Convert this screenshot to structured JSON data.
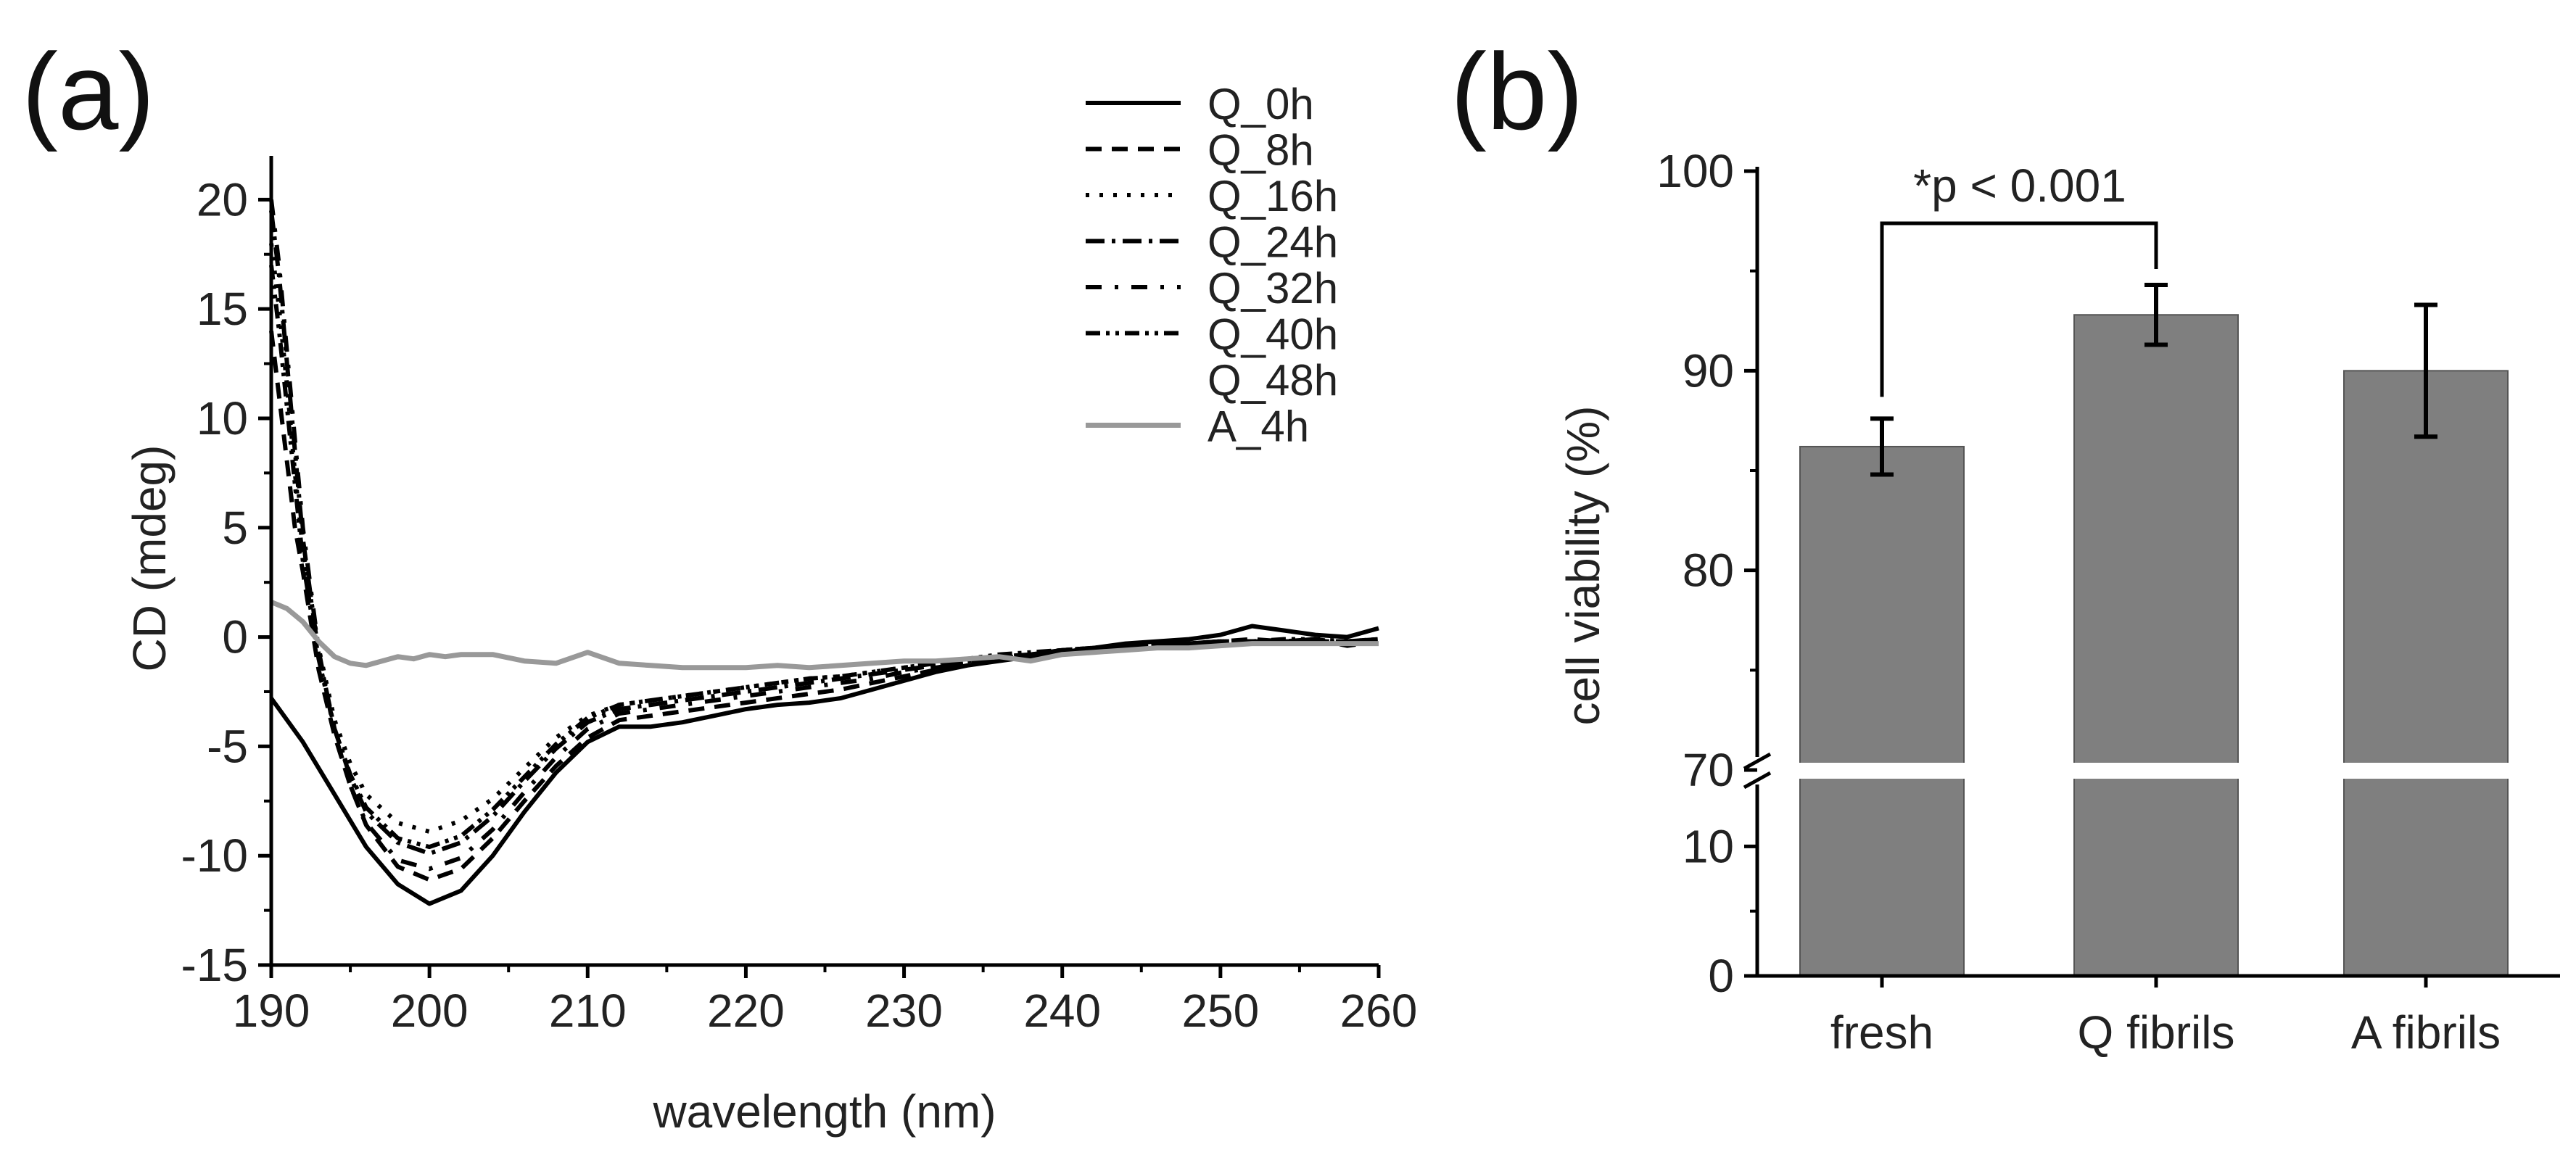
{
  "chart_data": [
    {
      "panel_label": "(a)",
      "type": "line",
      "xlabel": "wavelength (nm)",
      "ylabel": "CD (mdeg)",
      "xlim": [
        190,
        260
      ],
      "ylim": [
        -15,
        22
      ],
      "xticks": [
        190,
        200,
        210,
        220,
        230,
        240,
        250,
        260
      ],
      "yticks": [
        -15,
        -10,
        -5,
        0,
        5,
        10,
        15,
        20
      ],
      "legend_position": "top-right",
      "series": [
        {
          "name": "Q_0h",
          "color": "#000000",
          "dash": "solid",
          "x": [
            190,
            192,
            194,
            196,
            198,
            200,
            202,
            204,
            206,
            208,
            210,
            212,
            214,
            216,
            218,
            220,
            222,
            224,
            226,
            228,
            230,
            232,
            234,
            236,
            238,
            240,
            242,
            244,
            246,
            248,
            250,
            252,
            254,
            256,
            258,
            260
          ],
          "y": [
            -2.8,
            -4.8,
            -7.2,
            -9.6,
            -11.3,
            -12.2,
            -11.6,
            -10,
            -8,
            -6.2,
            -4.8,
            -4.1,
            -4.1,
            -3.9,
            -3.6,
            -3.3,
            -3.1,
            -3,
            -2.8,
            -2.4,
            -2,
            -1.6,
            -1.3,
            -1.1,
            -0.9,
            -0.7,
            -0.5,
            -0.3,
            -0.2,
            -0.1,
            0.1,
            0.5,
            0.3,
            0.1,
            0,
            0.4
          ]
        },
        {
          "name": "Q_8h",
          "color": "#000000",
          "dash": "dashed",
          "x": [
            190,
            190.5,
            191,
            191.5,
            192,
            193,
            194,
            195,
            196,
            198,
            200,
            202,
            204,
            206,
            208,
            210,
            212,
            214,
            216,
            218,
            220,
            222,
            224,
            226,
            228,
            230,
            232,
            234,
            236,
            238,
            240,
            242,
            244,
            246,
            248,
            250,
            252,
            254,
            256,
            258,
            260
          ],
          "y": [
            14,
            11,
            8,
            5,
            3,
            -1.5,
            -4.5,
            -6.8,
            -8.6,
            -10.5,
            -11.1,
            -10.6,
            -9.2,
            -7.5,
            -5.9,
            -4.6,
            -3.8,
            -3.6,
            -3.4,
            -3.2,
            -3,
            -2.8,
            -2.6,
            -2.4,
            -2.1,
            -1.8,
            -1.5,
            -1.2,
            -1,
            -0.8,
            -0.6,
            -0.5,
            -0.4,
            -0.3,
            -0.3,
            -0.2,
            -0.1,
            -0.2,
            -0.2,
            -0.2,
            -0.1
          ]
        },
        {
          "name": "Q_16h",
          "color": "#000000",
          "dash": "dotted",
          "x": [
            190,
            190.5,
            191,
            191.5,
            192,
            193,
            194,
            195,
            196,
            198,
            200,
            202,
            204,
            206,
            208,
            210,
            212,
            214,
            216,
            218,
            220,
            222,
            224,
            226,
            228,
            230,
            232,
            234,
            236,
            238,
            240,
            242,
            244,
            246,
            248,
            250,
            252,
            254,
            256,
            258,
            260
          ],
          "y": [
            18,
            15,
            11.5,
            7.5,
            4,
            -0.5,
            -3.8,
            -5.8,
            -7.2,
            -8.5,
            -8.9,
            -8.4,
            -7.4,
            -6,
            -4.6,
            -3.6,
            -3.1,
            -2.9,
            -2.7,
            -2.5,
            -2.3,
            -2.1,
            -1.9,
            -1.8,
            -1.6,
            -1.4,
            -1.2,
            -1,
            -0.9,
            -0.8,
            -0.6,
            -0.5,
            -0.4,
            -0.3,
            -0.3,
            -0.2,
            -0.2,
            -0.2,
            -0.1,
            -0.2,
            -0.1
          ]
        },
        {
          "name": "Q_24h",
          "color": "#000000",
          "dash": "dashdot",
          "x": [
            190,
            190.5,
            191,
            191.5,
            192,
            193,
            194,
            195,
            196,
            198,
            200,
            202,
            204,
            206,
            208,
            210,
            212,
            214,
            216,
            218,
            220,
            222,
            224,
            226,
            228,
            230,
            232,
            234,
            236,
            238,
            240,
            242,
            244,
            246,
            248,
            250,
            252,
            254,
            256,
            258,
            260
          ],
          "y": [
            19.5,
            16.5,
            12.5,
            8.5,
            4.5,
            -0.8,
            -4.2,
            -6.4,
            -8,
            -9.4,
            -9.9,
            -9.4,
            -8.2,
            -6.6,
            -5.1,
            -3.9,
            -3.3,
            -3.1,
            -2.9,
            -2.7,
            -2.5,
            -2.3,
            -2.1,
            -1.9,
            -1.7,
            -1.5,
            -1.3,
            -1.1,
            -0.9,
            -0.8,
            -0.6,
            -0.5,
            -0.4,
            -0.3,
            -0.3,
            -0.2,
            -0.2,
            -0.2,
            -0.2,
            -0.2,
            -0.1
          ]
        },
        {
          "name": "Q_32h",
          "color": "#000000",
          "dash": "dashdotsparse",
          "x": [
            190,
            190.5,
            191,
            191.5,
            192,
            193,
            194,
            195,
            196,
            198,
            200,
            202,
            204,
            206,
            208,
            210,
            212,
            214,
            216,
            218,
            220,
            222,
            224,
            226,
            228,
            230,
            232,
            234,
            236,
            238,
            240,
            242,
            244,
            246,
            248,
            250,
            252,
            254,
            256,
            258,
            260
          ],
          "y": [
            20,
            17,
            13,
            9,
            5,
            -0.6,
            -4.4,
            -6.8,
            -8.5,
            -10.2,
            -10.6,
            -10.1,
            -8.8,
            -7.1,
            -5.5,
            -4.2,
            -3.5,
            -3.3,
            -3.1,
            -2.9,
            -2.7,
            -2.5,
            -2.3,
            -2.1,
            -1.9,
            -1.6,
            -1.4,
            -1.2,
            -1,
            -0.8,
            -0.7,
            -0.5,
            -0.4,
            -0.3,
            -0.3,
            -0.2,
            -0.2,
            -0.2,
            -0.1,
            -0.4,
            -0.2
          ]
        },
        {
          "name": "Q_40h",
          "color": "#000000",
          "dash": "dashdotdot",
          "x": [
            190,
            190.5,
            191,
            191.5,
            192,
            193,
            194,
            195,
            196,
            198,
            200,
            202,
            204,
            206,
            208,
            210,
            212,
            214,
            216,
            218,
            220,
            222,
            224,
            226,
            228,
            230,
            232,
            234,
            236,
            238,
            240,
            242,
            244,
            246,
            248,
            250,
            252,
            254,
            256,
            258,
            260
          ],
          "y": [
            17,
            14,
            10.5,
            7,
            3.5,
            -1,
            -4.2,
            -6.3,
            -7.8,
            -9.2,
            -9.6,
            -9.1,
            -7.9,
            -6.4,
            -4.9,
            -3.7,
            -3.1,
            -2.9,
            -2.7,
            -2.5,
            -2.3,
            -2.1,
            -1.9,
            -1.8,
            -1.6,
            -1.4,
            -1.2,
            -1,
            -0.8,
            -0.7,
            -0.6,
            -0.5,
            -0.4,
            -0.3,
            -0.3,
            -0.2,
            -0.2,
            -0.1,
            -0.1,
            -0.3,
            -0.1
          ]
        },
        {
          "name": "Q_48h",
          "color": "#000000",
          "dash": "none",
          "x": [],
          "y": []
        },
        {
          "name": "A_4h",
          "color": "#999999",
          "dash": "solid",
          "x": [
            190,
            191,
            192,
            193,
            194,
            195,
            196,
            197,
            198,
            199,
            200,
            201,
            202,
            204,
            206,
            208,
            210,
            212,
            214,
            216,
            218,
            220,
            222,
            224,
            226,
            228,
            230,
            232,
            234,
            236,
            238,
            240,
            242,
            244,
            246,
            248,
            250,
            252,
            254,
            256,
            258,
            260
          ],
          "y": [
            1.6,
            1.3,
            0.7,
            -0.2,
            -0.9,
            -1.2,
            -1.3,
            -1.1,
            -0.9,
            -1.0,
            -0.8,
            -0.9,
            -0.8,
            -0.8,
            -1.1,
            -1.2,
            -0.7,
            -1.2,
            -1.3,
            -1.4,
            -1.4,
            -1.4,
            -1.3,
            -1.4,
            -1.3,
            -1.2,
            -1.1,
            -1.1,
            -1.0,
            -0.9,
            -1.1,
            -0.8,
            -0.7,
            -0.6,
            -0.5,
            -0.5,
            -0.4,
            -0.3,
            -0.3,
            -0.3,
            -0.3,
            -0.3
          ]
        }
      ]
    },
    {
      "panel_label": "(b)",
      "type": "bar",
      "categories": [
        "fresh",
        "Q fibrils",
        "A fibrils"
      ],
      "values": [
        86.2,
        92.8,
        90.0
      ],
      "errors": [
        1.4,
        1.5,
        3.3
      ],
      "ylabel": "cell viability (%)",
      "xlabel": "",
      "ylim_lower": [
        0,
        15
      ],
      "ylim_upper": [
        70,
        100
      ],
      "yticks_lower": [
        0,
        10
      ],
      "yticks_upper": [
        70,
        80,
        90,
        100
      ],
      "bar_color": "#7f7f7f",
      "annotation": "*p < 0.001",
      "annotation_between": [
        "fresh",
        "Q fibrils"
      ]
    }
  ]
}
